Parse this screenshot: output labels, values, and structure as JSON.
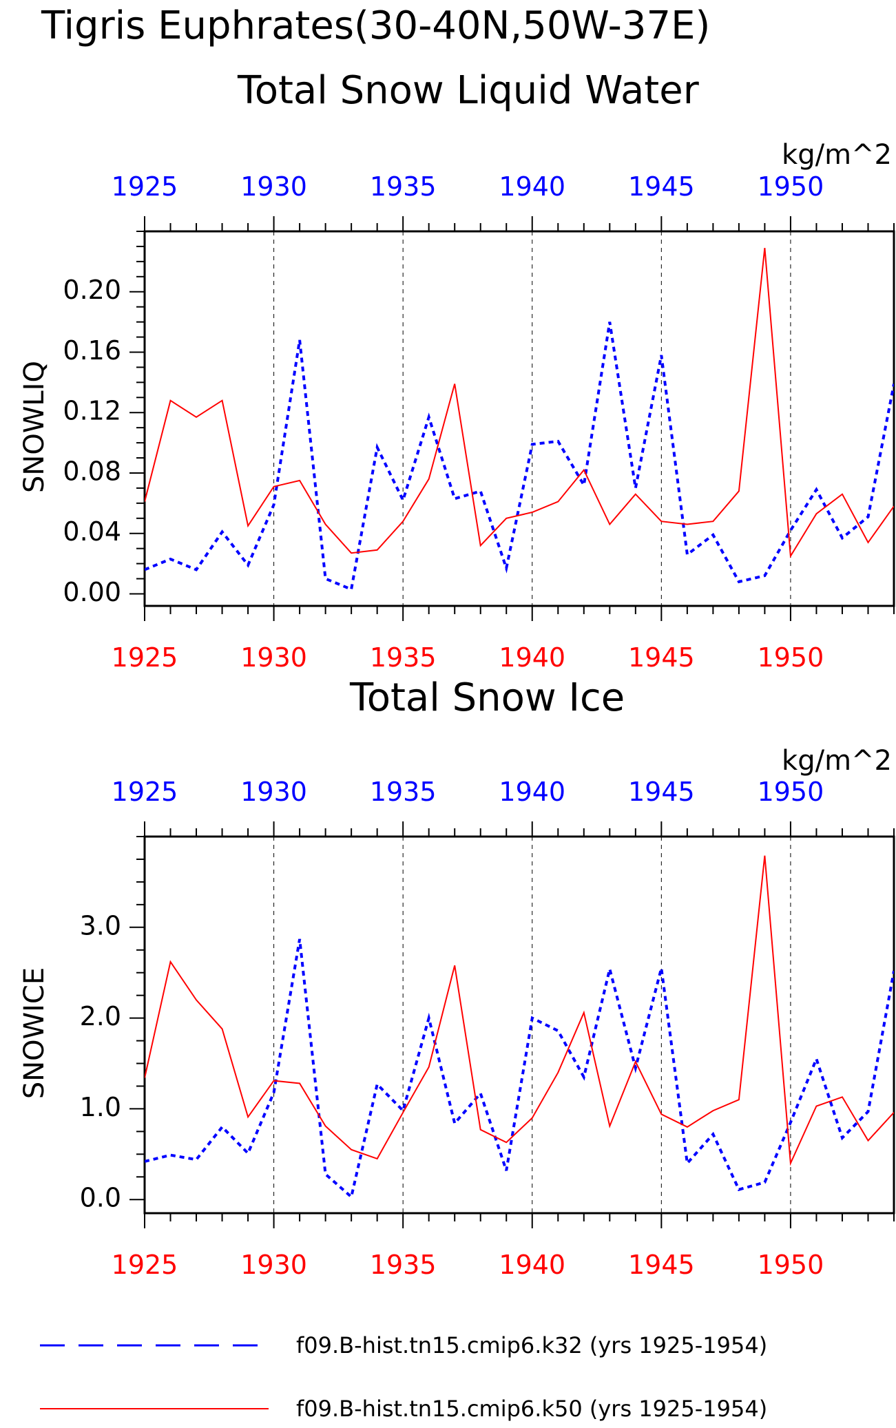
{
  "figure_title": "Tigris Euphrates(30-40N,50W-37E)",
  "colors": {
    "k32": "#0000ff",
    "k50": "#ff0000",
    "axis": "#000000"
  },
  "legend": [
    {
      "label": "f09.B-hist.tn15.cmip6.k32 (yrs 1925-1954)",
      "color": "#0000ff",
      "style": "dashed"
    },
    {
      "label": "f09.B-hist.tn15.cmip6.k50 (yrs 1925-1954)",
      "color": "#ff0000",
      "style": "solid"
    }
  ],
  "chart_data": [
    {
      "type": "line",
      "title": "Total Snow Liquid Water",
      "ylabel": "SNOWLIQ",
      "units": "kg/m^2",
      "xlim": [
        1925,
        1954
      ],
      "ylim": [
        -0.008,
        0.24
      ],
      "xticks": [
        1925,
        1930,
        1935,
        1940,
        1945,
        1950
      ],
      "yticks": [
        "0.00",
        "0.04",
        "0.08",
        "0.12",
        "0.16",
        "0.20"
      ],
      "grid": "vertical dashed at x ticks",
      "x": [
        1925,
        1926,
        1927,
        1928,
        1929,
        1930,
        1931,
        1932,
        1933,
        1934,
        1935,
        1936,
        1937,
        1938,
        1939,
        1940,
        1941,
        1942,
        1943,
        1944,
        1945,
        1946,
        1947,
        1948,
        1949,
        1950,
        1951,
        1952,
        1953,
        1954
      ],
      "series": [
        {
          "name": "f09.B-hist.tn15.cmip6.k32 (yrs 1925-1954)",
          "color": "#0000ff",
          "style": "dashed",
          "values": [
            0.016,
            0.023,
            0.016,
            0.041,
            0.019,
            0.059,
            0.168,
            0.01,
            0.003,
            0.097,
            0.062,
            0.117,
            0.063,
            0.068,
            0.017,
            0.099,
            0.101,
            0.072,
            0.18,
            0.07,
            0.158,
            0.026,
            0.039,
            0.008,
            0.012,
            0.042,
            0.069,
            0.037,
            0.051,
            0.139
          ]
        },
        {
          "name": "f09.B-hist.tn15.cmip6.k50 (yrs 1925-1954)",
          "color": "#ff0000",
          "style": "solid",
          "values": [
            0.061,
            0.128,
            0.117,
            0.128,
            0.045,
            0.071,
            0.075,
            0.046,
            0.027,
            0.029,
            0.048,
            0.076,
            0.139,
            0.032,
            0.05,
            0.054,
            0.061,
            0.082,
            0.046,
            0.066,
            0.048,
            0.046,
            0.048,
            0.068,
            0.229,
            0.025,
            0.053,
            0.066,
            0.034,
            0.058
          ]
        }
      ]
    },
    {
      "type": "line",
      "title": "Total Snow Ice",
      "ylabel": "SNOWICE",
      "units": "kg/m^2",
      "xlim": [
        1925,
        1954
      ],
      "ylim": [
        -0.15,
        4.0
      ],
      "xticks": [
        1925,
        1930,
        1935,
        1940,
        1945,
        1950
      ],
      "yticks": [
        "0.0",
        "1.0",
        "2.0",
        "3.0"
      ],
      "grid": "vertical dashed at x ticks",
      "x": [
        1925,
        1926,
        1927,
        1928,
        1929,
        1930,
        1931,
        1932,
        1933,
        1934,
        1935,
        1936,
        1937,
        1938,
        1939,
        1940,
        1941,
        1942,
        1943,
        1944,
        1945,
        1946,
        1947,
        1948,
        1949,
        1950,
        1951,
        1952,
        1953,
        1954
      ],
      "series": [
        {
          "name": "f09.B-hist.tn15.cmip6.k32 (yrs 1925-1954)",
          "color": "#0000ff",
          "style": "dashed",
          "values": [
            0.42,
            0.49,
            0.44,
            0.8,
            0.51,
            1.18,
            2.87,
            0.28,
            0.03,
            1.27,
            0.98,
            2.0,
            0.84,
            1.17,
            0.32,
            2.0,
            1.86,
            1.35,
            2.54,
            1.45,
            2.55,
            0.4,
            0.72,
            0.11,
            0.19,
            0.85,
            1.55,
            0.68,
            0.97,
            2.52
          ]
        },
        {
          "name": "f09.B-hist.tn15.cmip6.k50 (yrs 1925-1954)",
          "color": "#ff0000",
          "style": "solid",
          "values": [
            1.34,
            2.62,
            2.2,
            1.88,
            0.91,
            1.31,
            1.28,
            0.81,
            0.55,
            0.45,
            0.96,
            1.46,
            2.58,
            0.77,
            0.63,
            0.9,
            1.4,
            2.06,
            0.81,
            1.52,
            0.94,
            0.8,
            0.98,
            1.1,
            3.79,
            0.4,
            1.03,
            1.13,
            0.65,
            0.96
          ]
        }
      ]
    }
  ]
}
